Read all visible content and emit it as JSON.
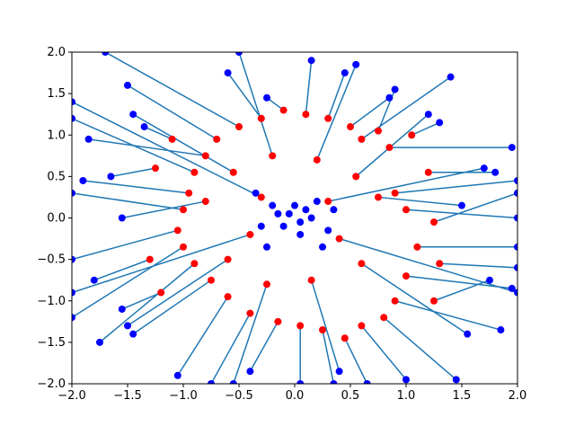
{
  "chart_data": {
    "type": "scatter",
    "title": "",
    "xlabel": "",
    "ylabel": "",
    "xlim": [
      -2.0,
      2.0
    ],
    "ylim": [
      -2.0,
      2.0
    ],
    "xticks": [
      "−2.0",
      "−1.5",
      "−1.0",
      "−0.5",
      "0.0",
      "0.5",
      "1.0",
      "1.5",
      "2.0"
    ],
    "yticks": [
      "−2.0",
      "−1.5",
      "−1.0",
      "−0.5",
      "0.0",
      "0.5",
      "1.0",
      "1.5",
      "2.0"
    ],
    "grid": false,
    "legend": "none",
    "colors": {
      "line": "#1f77b4",
      "source_point": "#ff0000",
      "target_point": "#0000ff"
    },
    "series": [
      {
        "role": "connection",
        "pairs": [
          {
            "from": [
              0.75,
              1.05
            ],
            "to": [
              0.9,
              1.55
            ]
          },
          {
            "from": [
              0.6,
              0.95
            ],
            "to": [
              1.4,
              1.7
            ]
          },
          {
            "from": [
              0.85,
              0.85
            ],
            "to": [
              1.95,
              0.85
            ]
          },
          {
            "from": [
              0.9,
              0.3
            ],
            "to": [
              2.0,
              0.45
            ]
          },
          {
            "from": [
              1.0,
              0.1
            ],
            "to": [
              2.0,
              0.0
            ]
          },
          {
            "from": [
              1.1,
              -0.35
            ],
            "to": [
              2.0,
              -0.35
            ]
          },
          {
            "from": [
              1.0,
              -0.7
            ],
            "to": [
              1.95,
              -0.85
            ]
          },
          {
            "from": [
              0.9,
              -1.0
            ],
            "to": [
              1.85,
              -1.35
            ]
          },
          {
            "from": [
              0.8,
              -1.2
            ],
            "to": [
              1.45,
              -1.95
            ]
          },
          {
            "from": [
              0.6,
              -1.3
            ],
            "to": [
              1.0,
              -1.95
            ]
          },
          {
            "from": [
              0.45,
              -1.45
            ],
            "to": [
              0.65,
              -2.0
            ]
          },
          {
            "from": [
              0.25,
              -1.35
            ],
            "to": [
              0.35,
              -2.0
            ]
          },
          {
            "from": [
              0.05,
              -1.3
            ],
            "to": [
              0.05,
              -2.0
            ]
          },
          {
            "from": [
              -0.15,
              -1.25
            ],
            "to": [
              -0.4,
              -1.85
            ]
          },
          {
            "from": [
              -0.4,
              -1.15
            ],
            "to": [
              -0.75,
              -2.0
            ]
          },
          {
            "from": [
              -0.6,
              -0.95
            ],
            "to": [
              -1.05,
              -1.9
            ]
          },
          {
            "from": [
              -0.75,
              -0.75
            ],
            "to": [
              -1.45,
              -1.4
            ]
          },
          {
            "from": [
              -0.9,
              -0.55
            ],
            "to": [
              -1.75,
              -1.5
            ]
          },
          {
            "from": [
              -1.0,
              -0.35
            ],
            "to": [
              -2.0,
              -1.2
            ]
          },
          {
            "from": [
              -1.05,
              -0.15
            ],
            "to": [
              -2.0,
              -0.5
            ]
          },
          {
            "from": [
              -1.0,
              0.1
            ],
            "to": [
              -2.0,
              0.3
            ]
          },
          {
            "from": [
              -0.95,
              0.3
            ],
            "to": [
              -1.9,
              0.45
            ]
          },
          {
            "from": [
              -0.9,
              0.55
            ],
            "to": [
              -2.0,
              1.2
            ]
          },
          {
            "from": [
              -0.8,
              0.75
            ],
            "to": [
              -1.85,
              0.95
            ]
          },
          {
            "from": [
              -0.7,
              0.95
            ],
            "to": [
              -1.5,
              1.6
            ]
          },
          {
            "from": [
              -0.5,
              1.1
            ],
            "to": [
              -1.7,
              2.0
            ]
          },
          {
            "from": [
              -0.3,
              1.2
            ],
            "to": [
              -0.6,
              1.75
            ]
          },
          {
            "from": [
              -0.1,
              1.3
            ],
            "to": [
              -0.25,
              1.45
            ]
          },
          {
            "from": [
              0.1,
              1.25
            ],
            "to": [
              0.15,
              1.9
            ]
          },
          {
            "from": [
              0.3,
              1.2
            ],
            "to": [
              0.45,
              1.75
            ]
          },
          {
            "from": [
              0.5,
              1.1
            ],
            "to": [
              0.85,
              1.45
            ]
          },
          {
            "from": [
              -0.3,
              0.25
            ],
            "to": [
              -2.0,
              1.4
            ]
          },
          {
            "from": [
              0.4,
              -0.25
            ],
            "to": [
              2.0,
              -0.9
            ]
          },
          {
            "from": [
              -0.4,
              -0.2
            ],
            "to": [
              -2.0,
              -0.9
            ]
          },
          {
            "from": [
              0.3,
              0.2
            ],
            "to": [
              1.7,
              0.6
            ]
          },
          {
            "from": [
              0.55,
              0.5
            ],
            "to": [
              1.2,
              1.25
            ]
          },
          {
            "from": [
              -0.55,
              0.55
            ],
            "to": [
              -1.45,
              1.25
            ]
          },
          {
            "from": [
              0.6,
              -0.55
            ],
            "to": [
              1.55,
              -1.4
            ]
          },
          {
            "from": [
              -0.6,
              -0.5
            ],
            "to": [
              -1.5,
              -1.3
            ]
          },
          {
            "from": [
              0.2,
              0.7
            ],
            "to": [
              0.55,
              1.85
            ]
          },
          {
            "from": [
              -0.2,
              0.75
            ],
            "to": [
              -0.5,
              2.0
            ]
          },
          {
            "from": [
              0.15,
              -0.75
            ],
            "to": [
              0.4,
              -1.85
            ]
          },
          {
            "from": [
              -0.25,
              -0.8
            ],
            "to": [
              -0.55,
              -2.0
            ]
          },
          {
            "from": [
              0.75,
              0.25
            ],
            "to": [
              1.5,
              0.15
            ]
          },
          {
            "from": [
              -0.8,
              0.2
            ],
            "to": [
              -1.55,
              0.0
            ]
          },
          {
            "from": [
              1.2,
              0.55
            ],
            "to": [
              1.8,
              0.55
            ]
          },
          {
            "from": [
              1.25,
              -0.05
            ],
            "to": [
              2.0,
              0.3
            ]
          },
          {
            "from": [
              1.3,
              -0.55
            ],
            "to": [
              2.0,
              -0.6
            ]
          },
          {
            "from": [
              1.25,
              -1.0
            ],
            "to": [
              1.75,
              -0.75
            ]
          },
          {
            "from": [
              -1.25,
              0.6
            ],
            "to": [
              -1.65,
              0.5
            ]
          },
          {
            "from": [
              -1.3,
              -0.5
            ],
            "to": [
              -1.8,
              -0.75
            ]
          },
          {
            "from": [
              -1.2,
              -0.9
            ],
            "to": [
              -1.55,
              -1.1
            ]
          },
          {
            "from": [
              -1.1,
              0.95
            ],
            "to": [
              -1.35,
              1.1
            ]
          },
          {
            "from": [
              1.05,
              1.0
            ],
            "to": [
              1.3,
              1.15
            ]
          }
        ]
      },
      {
        "role": "center",
        "points": [
          [
            -0.05,
            0.05
          ],
          [
            0.05,
            -0.05
          ],
          [
            0.1,
            0.1
          ],
          [
            -0.1,
            -0.1
          ],
          [
            0.0,
            0.15
          ],
          [
            0.15,
            0.0
          ],
          [
            -0.15,
            0.05
          ],
          [
            0.05,
            -0.2
          ],
          [
            -0.2,
            0.15
          ],
          [
            0.2,
            0.2
          ],
          [
            -0.3,
            -0.1
          ],
          [
            0.3,
            -0.15
          ],
          [
            0.35,
            0.1
          ],
          [
            -0.35,
            0.3
          ],
          [
            0.25,
            -0.35
          ],
          [
            -0.25,
            -0.35
          ]
        ]
      }
    ]
  }
}
